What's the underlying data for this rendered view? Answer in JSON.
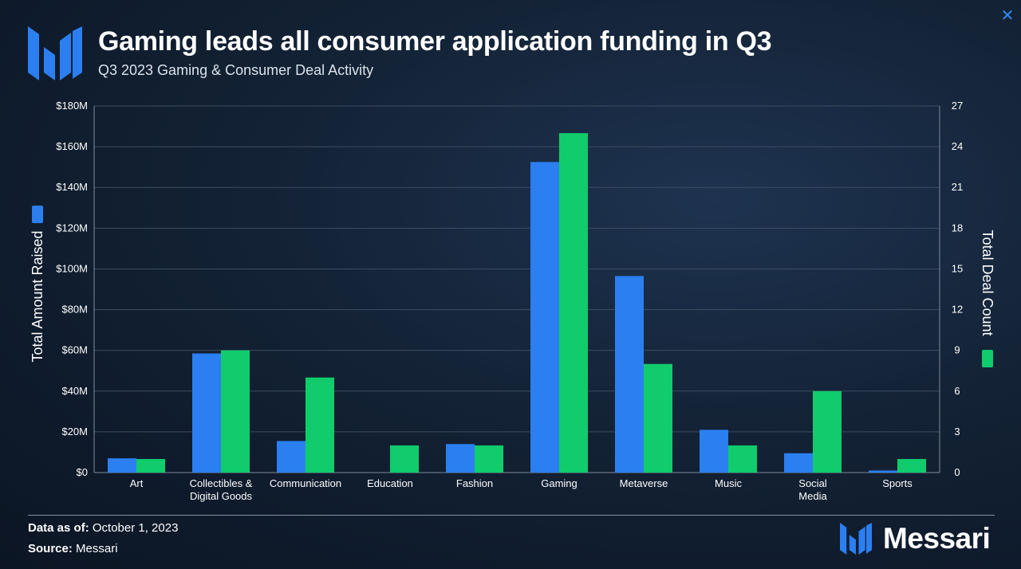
{
  "header": {
    "title": "Gaming leads all consumer application funding in Q3",
    "subtitle": "Q3 2023 Gaming & Consumer Deal Activity",
    "logo_icon": "messari-m-logo-icon",
    "close_icon": "close-icon",
    "close_glyph": "✕"
  },
  "colors": {
    "amount": "#2b7ff0",
    "count": "#10cc6c",
    "grid": "#3d4c60",
    "background": "#132235"
  },
  "chart_data": {
    "type": "bar",
    "categories": [
      [
        "Art"
      ],
      [
        "Collectibles &",
        "Digital Goods"
      ],
      [
        "Communication"
      ],
      [
        "Education"
      ],
      [
        "Fashion"
      ],
      [
        "Gaming"
      ],
      [
        "Metaverse"
      ],
      [
        "Music"
      ],
      [
        "Social",
        "Media"
      ],
      [
        "Sports"
      ]
    ],
    "series": [
      {
        "name": "Total Amount Raised",
        "axis": "left",
        "color": "#2b7ff0",
        "values": [
          7,
          58.5,
          15.5,
          0,
          14,
          152.5,
          96.5,
          21,
          9.5,
          1
        ]
      },
      {
        "name": "Total Deal Count",
        "axis": "right",
        "color": "#10cc6c",
        "values": [
          1,
          9,
          7,
          2,
          2,
          25,
          8,
          2,
          6,
          1
        ]
      }
    ],
    "ylabel": "Total Amount Raised",
    "y2label": "Total Deal Count",
    "ylim": [
      0,
      180
    ],
    "y2lim": [
      0,
      27
    ],
    "yticks": [
      "$0",
      "$20M",
      "$40M",
      "$60M",
      "$80M",
      "$100M",
      "$120M",
      "$140M",
      "$160M",
      "$180M"
    ],
    "y2ticks": [
      "0",
      "3",
      "6",
      "9",
      "12",
      "15",
      "18",
      "21",
      "24",
      "27"
    ],
    "grid": true
  },
  "footer": {
    "data_as_of_label": "Data as of:",
    "data_as_of_value": "October 1, 2023",
    "source_label": "Source:",
    "source_value": "Messari",
    "brand_name": "Messari"
  }
}
